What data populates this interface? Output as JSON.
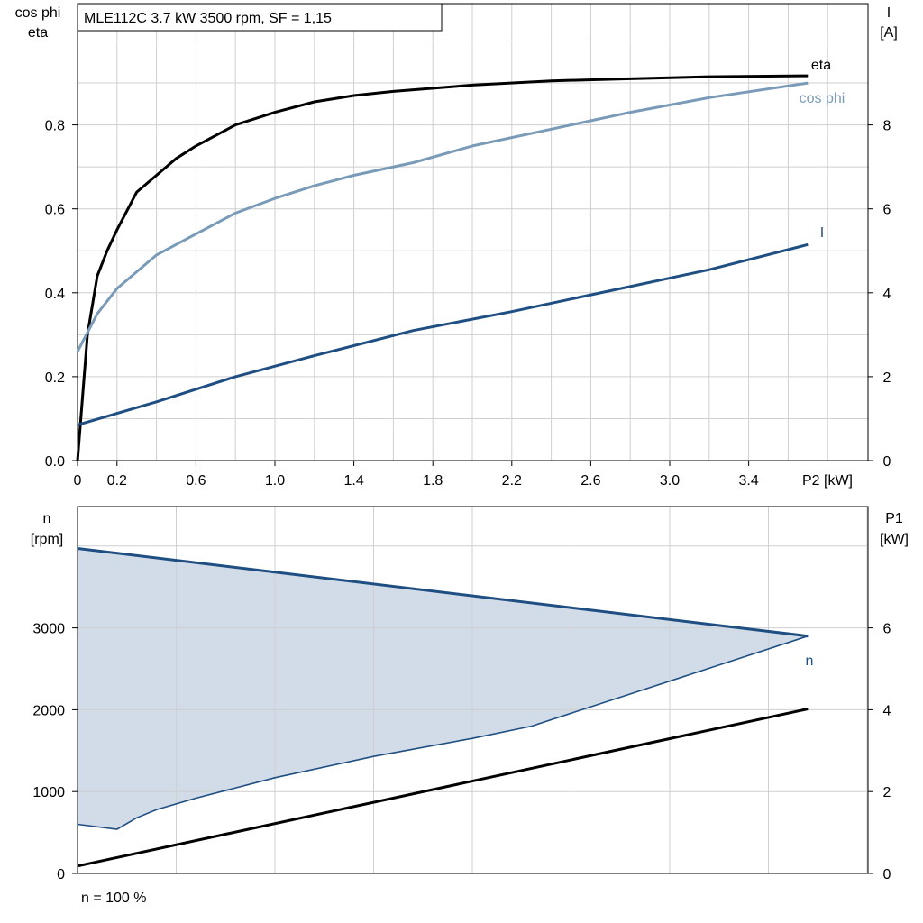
{
  "header": {
    "title": "MLE112C   3.7 kW   3500 rpm, SF = 1,15"
  },
  "footer": {
    "note": "n = 100 %"
  },
  "colors": {
    "eta": "#000000",
    "cos_phi": "#7a9bb8",
    "current": "#1f4f82",
    "speed": "#1f4f82",
    "speed_fill": "#d1dce8",
    "p1": "#000000"
  },
  "chart_data": [
    {
      "type": "line",
      "id": "performance",
      "title": "MLE112C   3.7 kW   3500 rpm, SF = 1,15",
      "xlabel": "P2 [kW]",
      "ylabel_left": [
        "cos phi",
        "eta"
      ],
      "ylabel_right": [
        "I",
        "[A]"
      ],
      "xlim": [
        0,
        4.0
      ],
      "ylim_left": [
        0,
        1.0
      ],
      "ylim_right": [
        0,
        10
      ],
      "x_ticks": [
        "0",
        "0.2",
        "0.6",
        "1.0",
        "1.4",
        "1.8",
        "2.2",
        "2.6",
        "3.0",
        "3.4"
      ],
      "y_ticks_left": [
        "0.0",
        "0.2",
        "0.4",
        "0.6",
        "0.8"
      ],
      "y_ticks_right": [
        "0",
        "2",
        "4",
        "6",
        "8"
      ],
      "grid": true,
      "series": [
        {
          "name": "eta",
          "axis": "left",
          "x": [
            0,
            0.05,
            0.1,
            0.15,
            0.2,
            0.3,
            0.4,
            0.5,
            0.6,
            0.8,
            1.0,
            1.2,
            1.4,
            1.6,
            2.0,
            2.4,
            2.8,
            3.2,
            3.7
          ],
          "y": [
            0,
            0.3,
            0.44,
            0.5,
            0.55,
            0.64,
            0.68,
            0.72,
            0.75,
            0.8,
            0.83,
            0.855,
            0.87,
            0.88,
            0.895,
            0.905,
            0.91,
            0.915,
            0.917
          ]
        },
        {
          "name": "cos phi",
          "axis": "left",
          "x": [
            0,
            0.1,
            0.2,
            0.3,
            0.4,
            0.6,
            0.8,
            1.0,
            1.2,
            1.4,
            1.7,
            2.0,
            2.4,
            2.8,
            3.2,
            3.7
          ],
          "y": [
            0.26,
            0.35,
            0.41,
            0.45,
            0.49,
            0.54,
            0.59,
            0.625,
            0.655,
            0.68,
            0.71,
            0.75,
            0.79,
            0.83,
            0.865,
            0.9
          ]
        },
        {
          "name": "I",
          "axis": "right",
          "x": [
            0,
            0.4,
            0.8,
            1.2,
            1.7,
            2.2,
            2.7,
            3.2,
            3.7
          ],
          "y": [
            0.85,
            1.4,
            2.0,
            2.5,
            3.1,
            3.55,
            4.05,
            4.55,
            5.15
          ]
        }
      ]
    },
    {
      "type": "area",
      "id": "speed_power",
      "xlabel": "",
      "ylabel_left": [
        "n",
        "[rpm]"
      ],
      "ylabel_right": [
        "P1",
        "[kW]"
      ],
      "xlim": [
        0,
        4.0
      ],
      "ylim_left": [
        0,
        4000
      ],
      "ylim_right": [
        0,
        8
      ],
      "y_ticks_left": [
        "0",
        "1000",
        "2000",
        "3000"
      ],
      "y_ticks_right": [
        "0",
        "2",
        "4",
        "6"
      ],
      "grid": true,
      "series": [
        {
          "name": "n",
          "axis": "left",
          "role": "upper-limit",
          "x": [
            0,
            3.7
          ],
          "y": [
            3970,
            2900
          ]
        },
        {
          "axis": "left",
          "role": "lower-limit",
          "x": [
            0,
            0.2,
            0.3,
            0.4,
            0.6,
            1.0,
            1.5,
            2.0,
            2.3,
            3.7
          ],
          "y": [
            600,
            540,
            680,
            780,
            920,
            1170,
            1430,
            1650,
            1800,
            2900
          ]
        },
        {
          "axis": "right",
          "x": [
            0,
            3.7
          ],
          "y": [
            0.18,
            4.02
          ]
        }
      ]
    }
  ]
}
